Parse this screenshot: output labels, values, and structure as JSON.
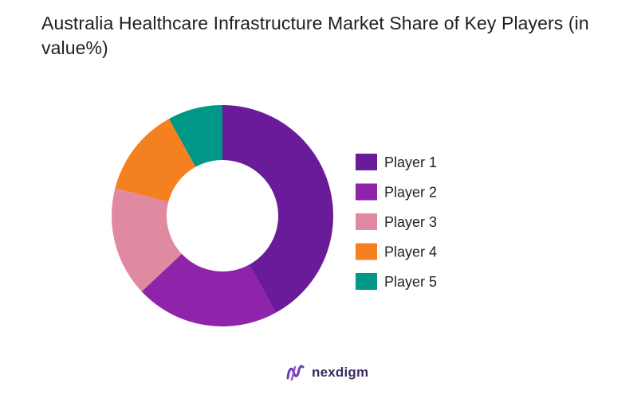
{
  "title": "Australia Healthcare Infrastructure Market Share of Key Players (in value%)",
  "chart_data": {
    "type": "pie",
    "variant": "donut",
    "title": "Australia Healthcare Infrastructure Market Share of Key Players (in value%)",
    "categories": [
      "Player 1",
      "Player 2",
      "Player 3",
      "Player 4",
      "Player 5"
    ],
    "values": [
      42,
      21,
      16,
      13,
      8
    ],
    "colors": [
      "#6a1b9a",
      "#8e24aa",
      "#e08aa2",
      "#f5801f",
      "#009688"
    ],
    "legend": "right"
  },
  "brand": {
    "name": "nexdigm",
    "logo_icon": "nexdigm-logo-icon"
  }
}
